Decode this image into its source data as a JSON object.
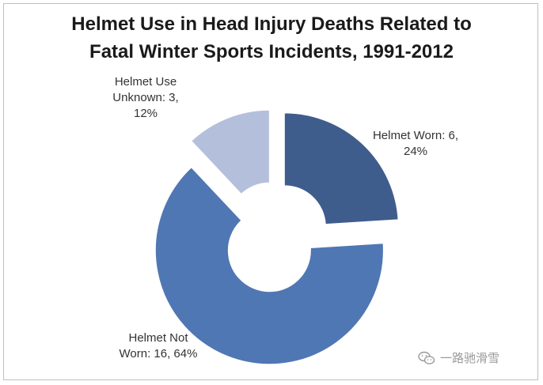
{
  "chart_data": {
    "type": "pie",
    "variant": "exploded-doughnut",
    "title_lines": [
      "Helmet Use in Head Injury Deaths Related to",
      "Fatal Winter Sports Incidents, 1991-2012"
    ],
    "slices": [
      {
        "name": "Helmet Worn",
        "value": 6,
        "percent": 24,
        "color": "#3f5d8c",
        "label_lines": [
          "Helmet Worn: 6,",
          "24%"
        ]
      },
      {
        "name": "Helmet Not Worn",
        "value": 16,
        "percent": 64,
        "color": "#4f77b3",
        "label_lines": [
          "Helmet Not",
          "Worn: 16, 64%"
        ]
      },
      {
        "name": "Helmet Use Unknown",
        "value": 3,
        "percent": 12,
        "color": "#b4bfdb",
        "label_lines": [
          "Helmet Use",
          "Unknown: 3,",
          "12%"
        ]
      }
    ],
    "legend": "none"
  },
  "watermark": {
    "text": "一路驰滑雪",
    "icon": "wechat-icon"
  }
}
